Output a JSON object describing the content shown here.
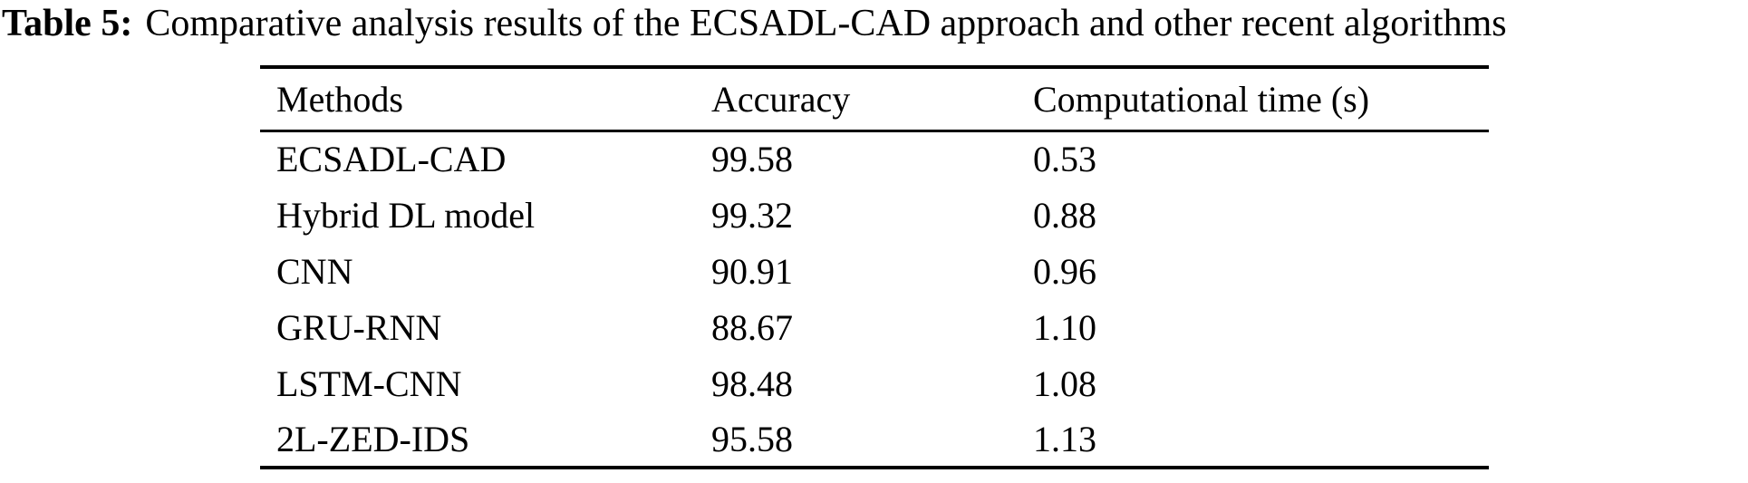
{
  "caption": {
    "label": "Table 5:",
    "text": "Comparative analysis results of the ECSADL-CAD approach and other recent algorithms"
  },
  "chart_data": {
    "type": "table",
    "columns": [
      "Methods",
      "Accuracy",
      "Computational time (s)"
    ],
    "rows": [
      {
        "method": "ECSADL-CAD",
        "accuracy": "99.58",
        "time": "0.53"
      },
      {
        "method": "Hybrid DL model",
        "accuracy": "99.32",
        "time": "0.88"
      },
      {
        "method": "CNN",
        "accuracy": "90.91",
        "time": "0.96"
      },
      {
        "method": "GRU-RNN",
        "accuracy": "88.67",
        "time": "1.10"
      },
      {
        "method": "LSTM-CNN",
        "accuracy": "98.48",
        "time": "1.08"
      },
      {
        "method": "2L-ZED-IDS",
        "accuracy": "95.58",
        "time": "1.13"
      }
    ]
  },
  "colors": {
    "text": "#000000",
    "background": "#ffffff",
    "rule": "#000000"
  }
}
